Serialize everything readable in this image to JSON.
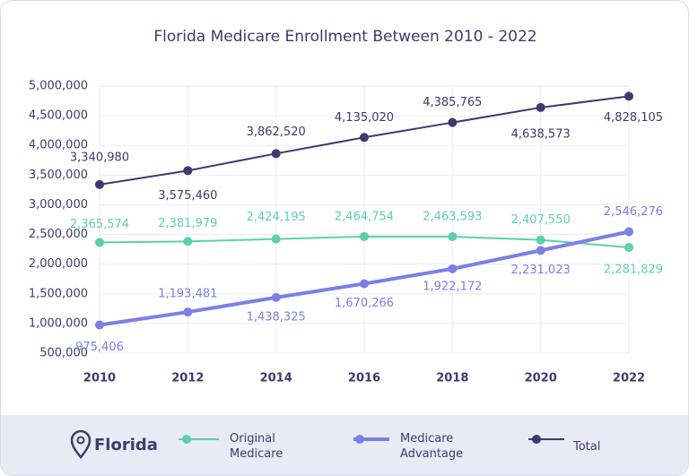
{
  "chart_data": {
    "type": "line",
    "title": "Florida Medicare Enrollment Between 2010 - 2022",
    "categories": [
      "2010",
      "2012",
      "2014",
      "2016",
      "2018",
      "2020",
      "2022"
    ],
    "series": [
      {
        "name": "Original Medicare",
        "color": "#5ccfaf",
        "values": [
          2365574,
          2381979,
          2424195,
          2464754,
          2463593,
          2407550,
          2281829
        ],
        "value_labels": [
          "2,365,574",
          "2,381,979",
          "2,424,195",
          "2,464,754",
          "2,463,593",
          "2,407,550",
          "2,281,829"
        ]
      },
      {
        "name": "Medicare Advantage",
        "color": "#7b7fe8",
        "values": [
          975406,
          1193481,
          1438325,
          1670266,
          1922172,
          2231023,
          2546276
        ],
        "value_labels": [
          "975,406",
          "1,193,481",
          "1,438,325",
          "1,670,266",
          "1,922,172",
          "2,231,023",
          "2,546,276"
        ]
      },
      {
        "name": "Total",
        "color": "#3b3c6e",
        "values": [
          3340980,
          3575460,
          3862520,
          4135020,
          4385765,
          4638573,
          4828105
        ],
        "value_labels": [
          "3,340,980",
          "3,575,460",
          "3,862,520",
          "4,135,020",
          "4,385,765",
          "4,638,573",
          "4,828,105"
        ]
      }
    ],
    "ylim": [
      500000,
      5000000
    ],
    "yticks": [
      {
        "value": 500000,
        "label": "500,000"
      },
      {
        "value": 1000000,
        "label": "1,000,000"
      },
      {
        "value": 1500000,
        "label": "1,500,000"
      },
      {
        "value": 2000000,
        "label": "2,000,000"
      },
      {
        "value": 2500000,
        "label": "2,500,000"
      },
      {
        "value": 3000000,
        "label": "3,000,000"
      },
      {
        "value": 3500000,
        "label": "3,500,000"
      },
      {
        "value": 4000000,
        "label": "4,000,000"
      },
      {
        "value": 4500000,
        "label": "4,500,000"
      },
      {
        "value": 5000000,
        "label": "5,000,000"
      }
    ],
    "grid": true,
    "legend_title": "Florida",
    "legend_position": "bottom"
  }
}
